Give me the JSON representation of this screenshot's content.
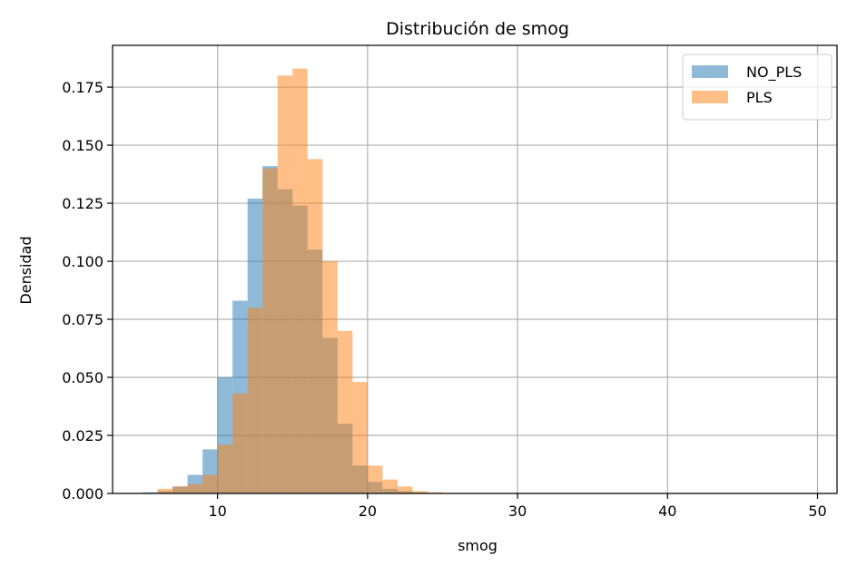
{
  "chart_data": {
    "type": "histogram",
    "title": "Distribución de smog",
    "xlabel": "smog",
    "ylabel": "Densidad",
    "xlim": [
      3.0,
      51.3
    ],
    "ylim": [
      0.0,
      0.193
    ],
    "xticks": [
      10,
      20,
      30,
      40,
      50
    ],
    "yticks": [
      0.0,
      0.025,
      0.05,
      0.075,
      0.1,
      0.125,
      0.15,
      0.175
    ],
    "ytick_labels": [
      "0.000",
      "0.025",
      "0.050",
      "0.075",
      "0.100",
      "0.125",
      "0.150",
      "0.175"
    ],
    "grid": true,
    "legend_position": "top-right",
    "series": [
      {
        "name": "NO_PLS",
        "color": "#1f77b4",
        "opacity": 0.5,
        "bin_start": 5.0,
        "bin_width": 1.0,
        "values": [
          0.0005,
          0.001,
          0.003,
          0.008,
          0.019,
          0.05,
          0.083,
          0.127,
          0.141,
          0.131,
          0.124,
          0.105,
          0.067,
          0.03,
          0.012,
          0.005,
          0.002,
          0.001,
          0.0005,
          0.0002,
          0.0001,
          0.0001
        ]
      },
      {
        "name": "PLS",
        "color": "#ff7f0e",
        "opacity": 0.5,
        "bin_start": 6.0,
        "bin_width": 1.0,
        "values": [
          0.002,
          0.003,
          0.004,
          0.008,
          0.021,
          0.043,
          0.08,
          0.14,
          0.18,
          0.183,
          0.144,
          0.1,
          0.07,
          0.048,
          0.012,
          0.006,
          0.003,
          0.001,
          0.0005,
          0.0002
        ]
      }
    ]
  }
}
